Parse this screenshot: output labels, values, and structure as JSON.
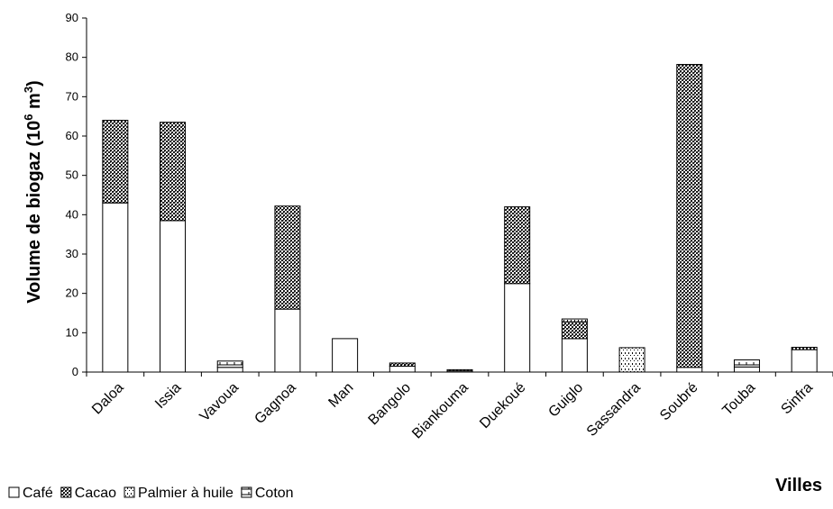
{
  "chart_data": {
    "type": "bar",
    "stacked": true,
    "categories": [
      "Daloa",
      "Issia",
      "Vavoua",
      "Gagnoa",
      "Man",
      "Bangolo",
      "Biankouma",
      "Duekoué",
      "Guiglo",
      "Sassandra",
      "Soubré",
      "Touba",
      "Sinfra"
    ],
    "series": [
      {
        "name": "Café",
        "pattern": "blank",
        "values": [
          43,
          38.5,
          1.2,
          16,
          8.5,
          1.5,
          0.3,
          22.5,
          8.5,
          0,
          1.2,
          1.3,
          5.7
        ]
      },
      {
        "name": "Cacao",
        "pattern": "dark-checker",
        "values": [
          21,
          25,
          0,
          26.2,
          0,
          0.8,
          0.3,
          19.5,
          4.3,
          0,
          77,
          0,
          0.6
        ]
      },
      {
        "name": "Palmier à huile",
        "pattern": "dots",
        "values": [
          0,
          0,
          0,
          0,
          0,
          0,
          0,
          0,
          0.7,
          6.2,
          0,
          0,
          0
        ]
      },
      {
        "name": "Coton",
        "pattern": "brick",
        "values": [
          0,
          0,
          1.6,
          0,
          0,
          0,
          0,
          0,
          0,
          0,
          0,
          1.8,
          0
        ]
      }
    ],
    "ylim": [
      0,
      90
    ],
    "yticks": [
      0,
      10,
      20,
      30,
      40,
      50,
      60,
      70,
      80,
      90
    ],
    "ylabel": "Volume de biogaz (10",
    "ylabel_sup": "6",
    "ylabel_unit": " m",
    "ylabel_unit_sup": "3",
    "ylabel_end": ")",
    "xlabel": "Villes",
    "legend_position": "bottom-left",
    "grid": false
  }
}
